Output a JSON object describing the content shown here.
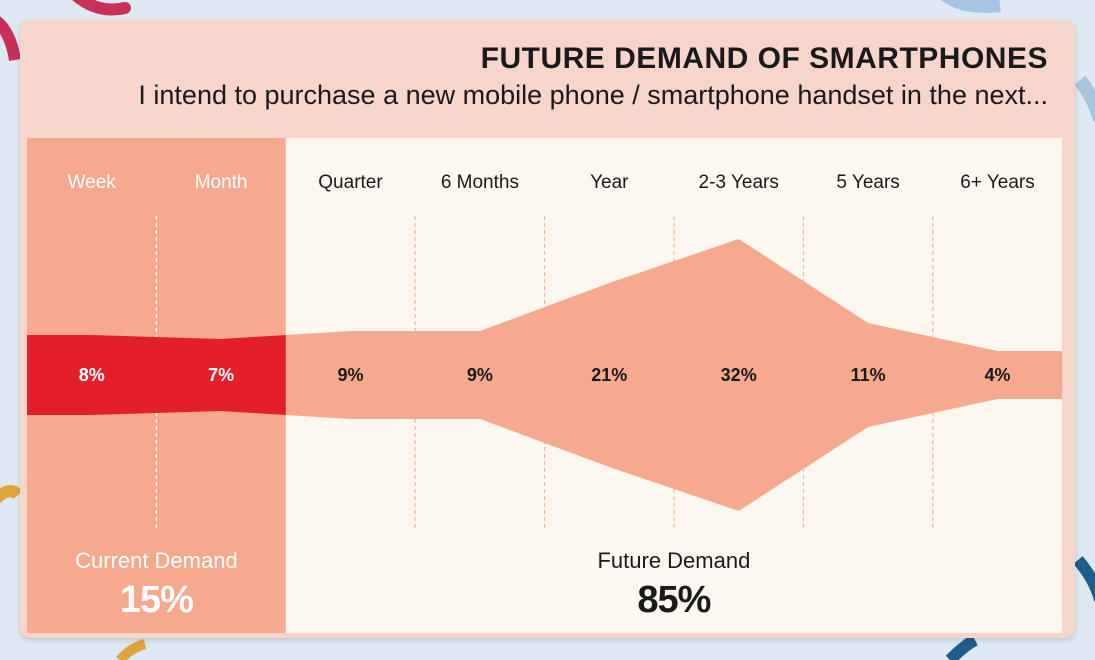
{
  "header": {
    "title": "FUTURE DEMAND OF SMARTPHONES",
    "subtitle": "I intend to purchase a new mobile phone / smartphone handset in the next..."
  },
  "chart_data": {
    "type": "area",
    "subtype": "symmetric-stream",
    "title": "FUTURE DEMAND OF SMARTPHONES",
    "question": "I intend to purchase a new mobile phone / smartphone handset in the next...",
    "categories": [
      "Week",
      "Month",
      "Quarter",
      "6 Months",
      "Year",
      "2-3 Years",
      "5 Years",
      "6+ Years"
    ],
    "values": [
      8,
      7,
      9,
      9,
      21,
      32,
      11,
      4
    ],
    "value_labels": [
      "8%",
      "7%",
      "9%",
      "9%",
      "21%",
      "32%",
      "11%",
      "4%"
    ],
    "unit": "%",
    "groups": [
      {
        "name": "Current Demand",
        "total_label": "15%",
        "total": 15,
        "categories": [
          "Week",
          "Month"
        ]
      },
      {
        "name": "Future Demand",
        "total_label": "85%",
        "total": 85,
        "categories": [
          "Quarter",
          "6 Months",
          "Year",
          "2-3 Years",
          "5 Years",
          "6+ Years"
        ]
      }
    ]
  },
  "colors": {
    "current_band": "#e3202a",
    "future_band": "#f7a98f",
    "current_bg": "#f7a98f",
    "future_bg": "#fcf8ef",
    "current_text": "#ffffff",
    "future_text": "#1a1a1a",
    "divider_current": "#ffffff",
    "divider_future": "#f2b8a3"
  }
}
